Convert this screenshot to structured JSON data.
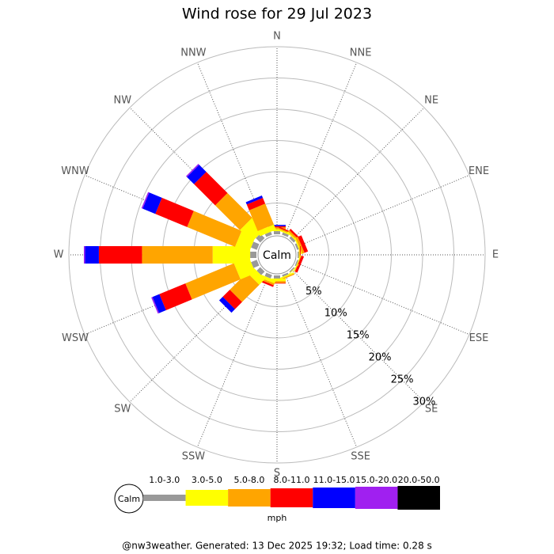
{
  "chart_data": {
    "type": "windrose",
    "title": "Wind rose for 29 Jul 2023",
    "directions": [
      "N",
      "NNE",
      "NE",
      "ENE",
      "E",
      "ESE",
      "SE",
      "SSE",
      "S",
      "SSW",
      "SW",
      "WSW",
      "W",
      "WNW",
      "NW",
      "NNW"
    ],
    "series": [
      {
        "name": "1.0-3.0",
        "color": "#999999",
        "values": [
          0.5,
          0.4,
          0.4,
          0.3,
          0.2,
          0.2,
          0.2,
          0.3,
          0.5,
          0.6,
          0.8,
          1,
          1,
          1,
          1,
          0.5
        ]
      },
      {
        "name": "3.0-5.0",
        "color": "#ffff00",
        "values": [
          0.3,
          0.2,
          0.2,
          0.2,
          0.1,
          0.1,
          0.1,
          0.2,
          0.4,
          0.5,
          1.3,
          2.6,
          6,
          2.4,
          2.7,
          0.9
        ]
      },
      {
        "name": "5.0-8.0",
        "color": "#ffa500",
        "values": [
          0.3,
          0.2,
          0.3,
          0.4,
          0.1,
          0.1,
          0,
          0.2,
          0.3,
          0.3,
          3.9,
          8.4,
          11.3,
          8.3,
          5.6,
          3.6
        ]
      },
      {
        "name": "8.0-11.0",
        "color": "#ff0000",
        "values": [
          0.2,
          0.2,
          0.3,
          0.6,
          0.1,
          0.4,
          0,
          0,
          0.1,
          0.3,
          1.6,
          4.5,
          6.9,
          5.5,
          4.8,
          1
        ]
      },
      {
        "name": "11.0-15.0",
        "color": "#0000ff",
        "values": [
          0.2,
          0,
          0,
          0,
          0,
          0,
          0,
          0,
          0,
          0,
          0.8,
          1.2,
          2.2,
          2.2,
          1.6,
          0.4
        ]
      },
      {
        "name": "15.0-20.0",
        "color": "#a020f0",
        "values": [
          0,
          0,
          0,
          0,
          0,
          0,
          0,
          0,
          0,
          0,
          0,
          0.2,
          0.2,
          0.2,
          0.2,
          0
        ]
      },
      {
        "name": "20.0-50.0",
        "color": "#000000",
        "values": [
          0,
          0,
          0,
          0,
          0,
          0,
          0,
          0,
          0,
          0,
          0,
          0,
          0,
          0,
          0,
          0
        ]
      }
    ],
    "rlim": [
      0,
      30
    ],
    "rticks": [
      {
        "value": 5,
        "label": "5%"
      },
      {
        "value": 10,
        "label": "10%"
      },
      {
        "value": 15,
        "label": "15%"
      },
      {
        "value": 20,
        "label": "20%"
      },
      {
        "value": 25,
        "label": "25%"
      },
      {
        "value": 30,
        "label": "30%"
      }
    ],
    "calm_label": "Calm",
    "unit": "mph",
    "footer": "@nw3weather. Generated: 13 Dec 2025 19:32; Load time: 0.28 s"
  }
}
